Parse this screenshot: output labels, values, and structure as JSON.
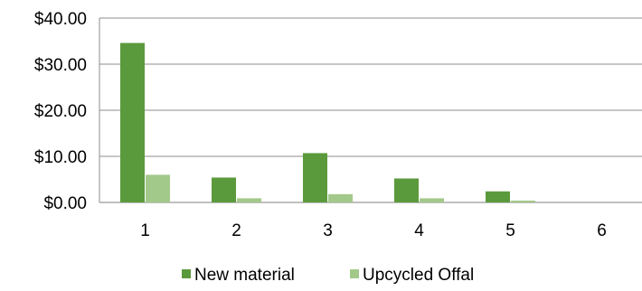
{
  "chart_data": {
    "type": "bar",
    "title": "",
    "xlabel": "",
    "ylabel": "",
    "categories": [
      "1",
      "2",
      "3",
      "4",
      "5",
      "6"
    ],
    "series": [
      {
        "name": "New material",
        "color": "#5b9a3c",
        "values": [
          34.6,
          5.4,
          10.7,
          5.2,
          2.4,
          0
        ]
      },
      {
        "name": "Upcycled Offal",
        "color": "#a3c98a",
        "values": [
          6.0,
          0.9,
          1.8,
          0.9,
          0.4,
          0
        ]
      }
    ],
    "ylim": [
      0,
      40
    ],
    "yticks": [
      0,
      10,
      20,
      30,
      40
    ],
    "ytick_labels": [
      "$0.00",
      "$10.00",
      "$20.00",
      "$30.00",
      "$40.00"
    ],
    "grid": true,
    "legend_position": "bottom"
  }
}
